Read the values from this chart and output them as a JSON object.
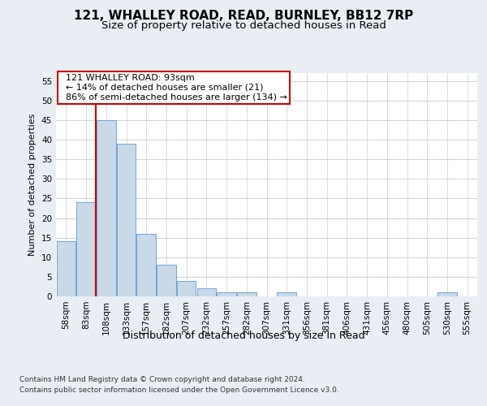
{
  "title": "121, WHALLEY ROAD, READ, BURNLEY, BB12 7RP",
  "subtitle": "Size of property relative to detached houses in Read",
  "xlabel": "Distribution of detached houses by size in Read",
  "ylabel": "Number of detached properties",
  "footer_line1": "Contains HM Land Registry data © Crown copyright and database right 2024.",
  "footer_line2": "Contains public sector information licensed under the Open Government Licence v3.0.",
  "annotation_title": "121 WHALLEY ROAD: 93sqm",
  "annotation_line2": "← 14% of detached houses are smaller (21)",
  "annotation_line3": "86% of semi-detached houses are larger (134) →",
  "bin_labels": [
    "58sqm",
    "83sqm",
    "108sqm",
    "133sqm",
    "157sqm",
    "182sqm",
    "207sqm",
    "232sqm",
    "257sqm",
    "282sqm",
    "307sqm",
    "331sqm",
    "356sqm",
    "381sqm",
    "406sqm",
    "431sqm",
    "456sqm",
    "480sqm",
    "505sqm",
    "530sqm",
    "555sqm"
  ],
  "bar_values": [
    14,
    24,
    45,
    39,
    16,
    8,
    4,
    2,
    1,
    1,
    0,
    1,
    0,
    0,
    0,
    0,
    0,
    0,
    0,
    1,
    0
  ],
  "bar_color": "#c9d9e8",
  "bar_edge_color": "#5b9bd5",
  "vline_color": "#cc0000",
  "ylim": [
    0,
    57
  ],
  "yticks": [
    0,
    5,
    10,
    15,
    20,
    25,
    30,
    35,
    40,
    45,
    50,
    55
  ],
  "bg_color": "#e8eef4",
  "plot_bg_color": "#ffffff",
  "grid_color": "#cccccc",
  "title_fontsize": 11,
  "subtitle_fontsize": 9.5,
  "axis_label_fontsize": 9,
  "ylabel_fontsize": 8,
  "tick_fontsize": 7.5,
  "annotation_box_color": "#ffffff",
  "annotation_box_edge": "#cc0000",
  "annotation_fontsize": 8
}
